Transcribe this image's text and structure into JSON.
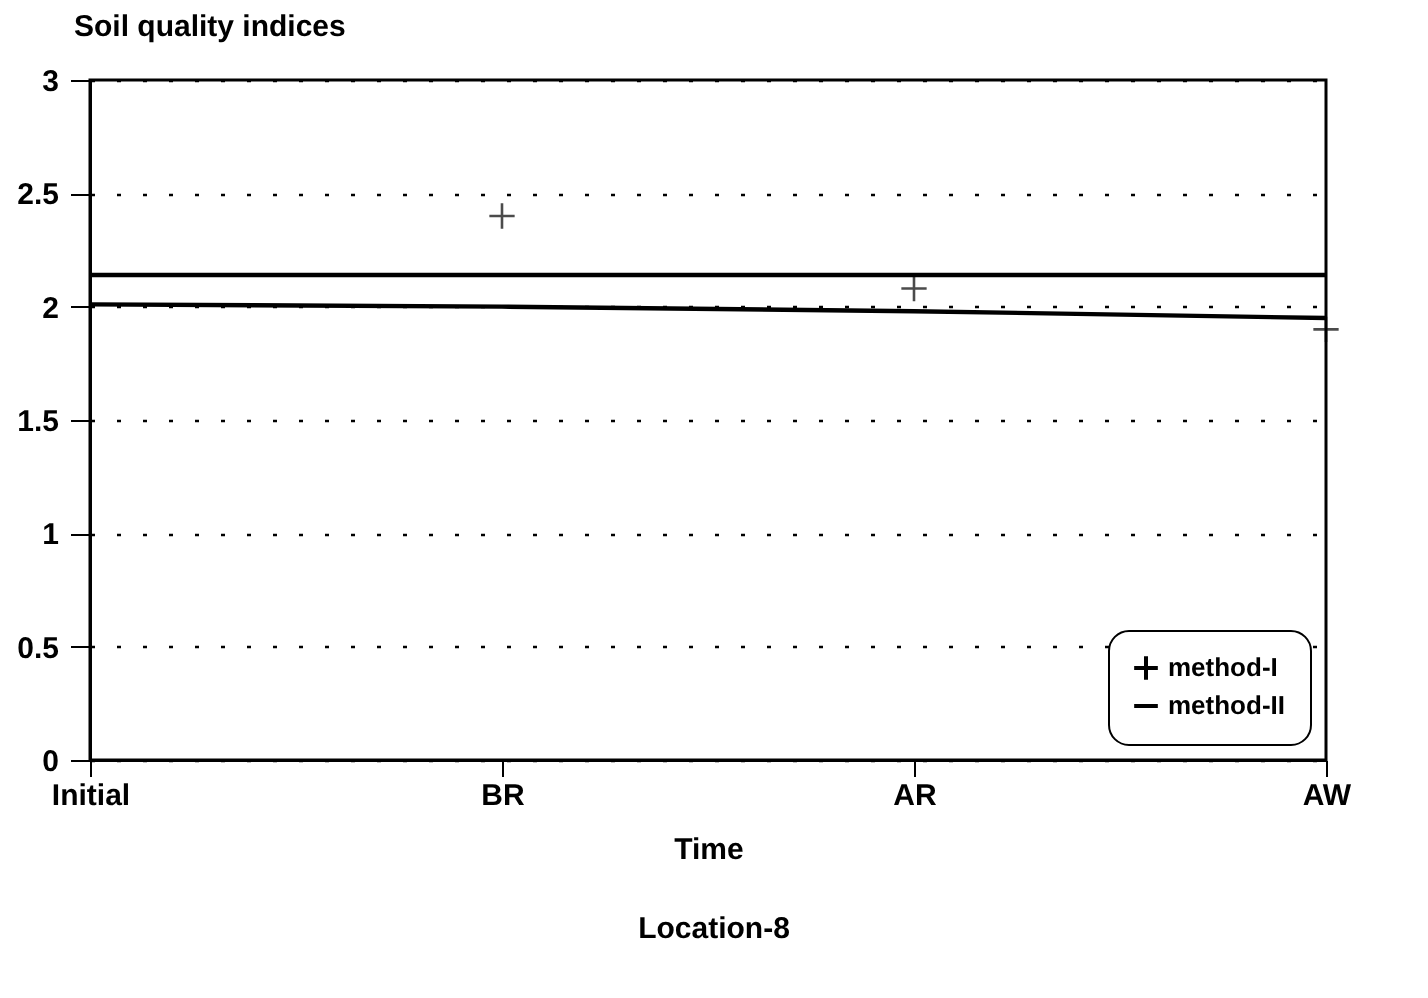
{
  "chart_data": {
    "type": "line",
    "title": "Soil quality indices",
    "xlabel": "Time",
    "annotations": [
      "Location-8"
    ],
    "categories": [
      "Initial",
      "BR",
      "AR",
      "AW"
    ],
    "series": [
      {
        "name": "method-I",
        "type": "scatter",
        "marker": "cross",
        "color": "#000000",
        "values": [
          null,
          2.4,
          2.08,
          1.9
        ]
      },
      {
        "name": "method-II",
        "color": "#000000",
        "values": [
          2.14,
          2.14,
          2.14,
          2.14
        ]
      },
      {
        "color": "#000000",
        "values": [
          2.01,
          2.0,
          1.98,
          1.95
        ]
      }
    ],
    "ylim": [
      0,
      3
    ],
    "yticks": [
      0,
      0.5,
      1,
      1.5,
      2,
      2.5,
      3
    ],
    "grid": "y",
    "legend": "bottom right"
  }
}
